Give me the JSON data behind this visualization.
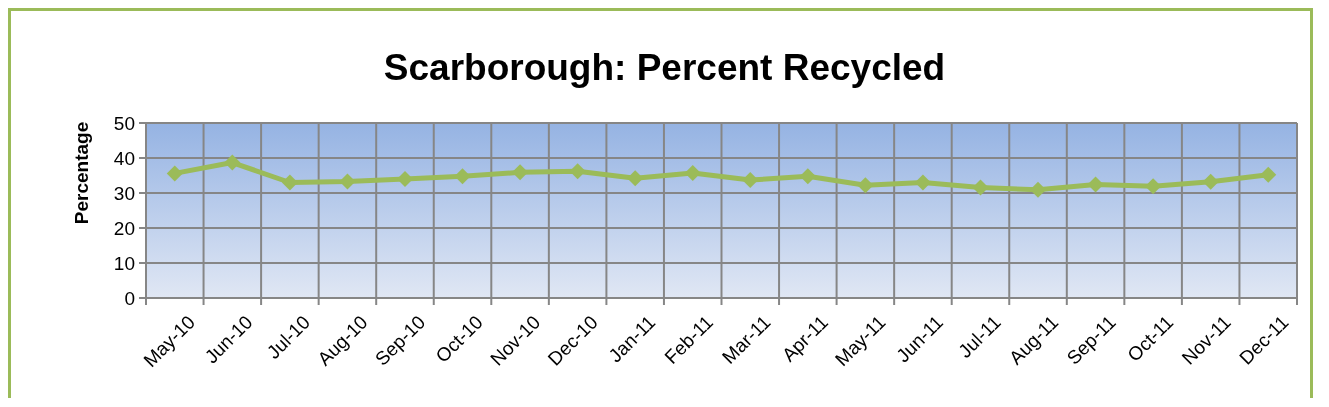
{
  "chart_data": {
    "type": "line",
    "title": "Scarborough: Percent Recycled",
    "ylabel": "Percentage",
    "categories": [
      "May-10",
      "Jun-10",
      "Jul-10",
      "Aug-10",
      "Sep-10",
      "Oct-10",
      "Nov-10",
      "Dec-10",
      "Jan-11",
      "Feb-11",
      "Mar-11",
      "Apr-11",
      "May-11",
      "Jun-11",
      "Jul-11",
      "Aug-11",
      "Sep-11",
      "Oct-11",
      "Nov-11",
      "Dec-11"
    ],
    "series": [
      {
        "color": "#9bbb59",
        "values": [
          35.6,
          38.7,
          33.0,
          33.3,
          34.0,
          34.8,
          35.9,
          36.2,
          34.2,
          35.7,
          33.7,
          34.8,
          32.2,
          33.0,
          31.6,
          30.9,
          32.4,
          31.9,
          33.2,
          35.2
        ]
      }
    ],
    "ylim": [
      0,
      50
    ],
    "yticks": [
      0,
      10,
      20,
      30,
      40,
      50
    ],
    "grid": true,
    "marker": "diamond",
    "line_style": "solid"
  }
}
